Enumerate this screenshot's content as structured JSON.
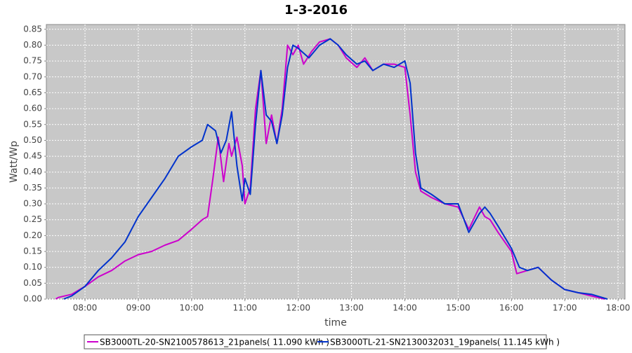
{
  "chart_data": {
    "type": "line",
    "title": "1-3-2016",
    "xlabel": "time",
    "ylabel": "Watt/Wp",
    "xlim": [
      7.275,
      18.13
    ],
    "ylim": [
      0,
      0.865
    ],
    "xticks": [
      {
        "value": 8,
        "label": "08:00"
      },
      {
        "value": 9,
        "label": "09:00"
      },
      {
        "value": 10,
        "label": "10:00"
      },
      {
        "value": 11,
        "label": "11:00"
      },
      {
        "value": 12,
        "label": "12:00"
      },
      {
        "value": 13,
        "label": "13:00"
      },
      {
        "value": 14,
        "label": "14:00"
      },
      {
        "value": 15,
        "label": "15:00"
      },
      {
        "value": 16,
        "label": "16:00"
      },
      {
        "value": 17,
        "label": "17:00"
      },
      {
        "value": 18,
        "label": "18:00"
      }
    ],
    "yticks": [
      {
        "value": 0,
        "label": "0.00"
      },
      0.05,
      {
        "value": 0.1,
        "label": "0.10"
      },
      0.15,
      {
        "value": 0.2,
        "label": "0.20"
      },
      0.25,
      {
        "value": 0.3,
        "label": "0.30"
      },
      0.35,
      {
        "value": 0.4,
        "label": "0.40"
      },
      0.45,
      {
        "value": 0.5,
        "label": "0.50"
      },
      0.55,
      {
        "value": 0.6,
        "label": "0.60"
      },
      0.65,
      {
        "value": 0.7,
        "label": "0.70"
      },
      0.75,
      {
        "value": 0.8,
        "label": "0.80"
      },
      0.85
    ],
    "grid": true,
    "series": [
      {
        "name": "SB3000TL-20-SN2100578613_21panels( 11.090 kWh )",
        "color": "#cc00cc",
        "x": [
          7.45,
          7.5,
          7.75,
          8.0,
          8.25,
          8.5,
          8.75,
          9.0,
          9.25,
          9.5,
          9.75,
          10.0,
          10.2,
          10.3,
          10.4,
          10.5,
          10.6,
          10.7,
          10.75,
          10.85,
          10.95,
          11.0,
          11.1,
          11.2,
          11.3,
          11.4,
          11.5,
          11.6,
          11.7,
          11.8,
          11.9,
          12.0,
          12.1,
          12.25,
          12.4,
          12.6,
          12.75,
          12.9,
          13.1,
          13.25,
          13.4,
          13.6,
          13.8,
          14.0,
          14.1,
          14.2,
          14.3,
          14.5,
          14.75,
          15.0,
          15.2,
          15.4,
          15.5,
          15.6,
          15.75,
          16.0,
          16.1,
          16.3,
          16.5,
          16.75,
          17.0,
          17.25,
          17.5,
          17.75
        ],
        "values": [
          0.0,
          0.005,
          0.015,
          0.04,
          0.07,
          0.09,
          0.12,
          0.14,
          0.15,
          0.17,
          0.185,
          0.22,
          0.25,
          0.26,
          0.38,
          0.51,
          0.37,
          0.49,
          0.45,
          0.51,
          0.42,
          0.3,
          0.35,
          0.6,
          0.72,
          0.49,
          0.58,
          0.49,
          0.6,
          0.8,
          0.77,
          0.8,
          0.74,
          0.78,
          0.81,
          0.82,
          0.8,
          0.76,
          0.73,
          0.76,
          0.72,
          0.74,
          0.74,
          0.73,
          0.58,
          0.4,
          0.34,
          0.32,
          0.3,
          0.29,
          0.22,
          0.29,
          0.26,
          0.25,
          0.21,
          0.15,
          0.08,
          0.09,
          0.1,
          0.06,
          0.03,
          0.02,
          0.01,
          0.0
        ]
      },
      {
        "name": "SB3000TL-21-SN2130032031_19panels( 11.145 kWh )",
        "color": "#0033cc",
        "x": [
          7.6,
          7.75,
          8.0,
          8.25,
          8.5,
          8.75,
          9.0,
          9.25,
          9.5,
          9.75,
          10.0,
          10.2,
          10.3,
          10.45,
          10.55,
          10.65,
          10.75,
          10.85,
          10.95,
          11.0,
          11.1,
          11.2,
          11.3,
          11.4,
          11.5,
          11.6,
          11.7,
          11.8,
          11.9,
          12.0,
          12.2,
          12.4,
          12.6,
          12.75,
          12.9,
          13.1,
          13.25,
          13.4,
          13.6,
          13.8,
          14.0,
          14.1,
          14.2,
          14.3,
          14.5,
          14.75,
          15.0,
          15.2,
          15.4,
          15.5,
          15.6,
          15.75,
          16.0,
          16.15,
          16.3,
          16.5,
          16.75,
          17.0,
          17.25,
          17.5,
          17.8
        ],
        "values": [
          0.0,
          0.01,
          0.04,
          0.09,
          0.13,
          0.18,
          0.26,
          0.32,
          0.38,
          0.45,
          0.48,
          0.5,
          0.55,
          0.53,
          0.46,
          0.5,
          0.59,
          0.42,
          0.31,
          0.38,
          0.33,
          0.55,
          0.72,
          0.58,
          0.56,
          0.49,
          0.58,
          0.73,
          0.8,
          0.79,
          0.76,
          0.8,
          0.82,
          0.8,
          0.77,
          0.74,
          0.75,
          0.72,
          0.74,
          0.73,
          0.75,
          0.68,
          0.46,
          0.35,
          0.33,
          0.3,
          0.3,
          0.21,
          0.27,
          0.29,
          0.27,
          0.23,
          0.16,
          0.1,
          0.09,
          0.1,
          0.06,
          0.03,
          0.02,
          0.015,
          0.0
        ]
      }
    ]
  }
}
